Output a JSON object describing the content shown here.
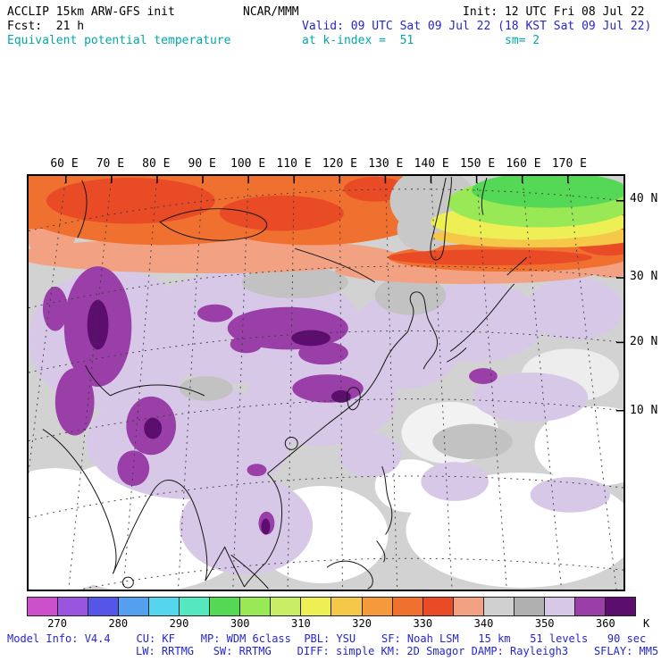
{
  "header": {
    "model": "ACCLIP 15km ARW-GFS init",
    "center": "NCAR/MMM",
    "init": "Init: 12 UTC Fri 08 Jul 22",
    "fcst": "Fcst:  21 h",
    "valid": "Valid: 09 UTC Sat 09 Jul 22 (18 KST Sat 09 Jul 22)",
    "field": "Equivalent potential temperature",
    "level": "at k-index =  51",
    "smoothing": "sm= 2"
  },
  "axes": {
    "lon_labels": [
      "60 E",
      "70 E",
      "80 E",
      "90 E",
      "100 E",
      "110 E",
      "120 E",
      "130 E",
      "140 E",
      "150 E",
      "160 E",
      "170 E"
    ],
    "lat_labels": [
      "40 N",
      "30 N",
      "20 N",
      "10 N"
    ]
  },
  "colorbar": {
    "unit": "K",
    "tick_labels": [
      "270",
      "280",
      "290",
      "300",
      "310",
      "320",
      "330",
      "340",
      "350",
      "360"
    ],
    "colors": [
      "#cc50cc",
      "#9955dd",
      "#5555e8",
      "#55a0ee",
      "#55d5ee",
      "#55e8c0",
      "#55d855",
      "#99e855",
      "#c8ee66",
      "#eeee55",
      "#f5c84a",
      "#f59a3c",
      "#f07030",
      "#e84b25",
      "#f2a283",
      "#d0d0d0",
      "#b0b0b0",
      "#d8c8e8",
      "#9a3fa8",
      "#5c0e6e"
    ]
  },
  "footer": {
    "line1": "Model Info: V4.4    CU: KF    MP: WDM 6class  PBL: YSU    SF: Noah LSM   15 km   51 levels   90 sec",
    "line2": "LW: RRTMG   SW: RRTMG    DIFF: simple KM: 2D Smagor DAMP: Rayleigh3    SFLAY: MM5"
  }
}
